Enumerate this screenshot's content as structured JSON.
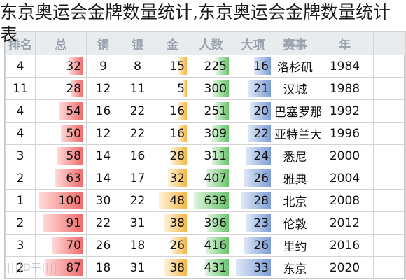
{
  "title": "东京奥运会金牌数量统计,东京奥运会金牌数量统计表",
  "headers": [
    "排名",
    "总",
    "铜",
    "银",
    "金",
    "人数",
    "大项",
    "赛事",
    "年"
  ],
  "rows": [
    {
      "rank": "4",
      "total": 32,
      "bronze": "9",
      "silver": "8",
      "gold": 15,
      "people": 225,
      "events": 16,
      "city": "洛杉矶",
      "year": "1984"
    },
    {
      "rank": "11",
      "total": 28,
      "bronze": "12",
      "silver": "11",
      "gold": 5,
      "people": 300,
      "events": 21,
      "city": "汉城",
      "year": "1988"
    },
    {
      "rank": "4",
      "total": 54,
      "bronze": "16",
      "silver": "22",
      "gold": 16,
      "people": 251,
      "events": 20,
      "city": "巴塞罗那",
      "year": "1992"
    },
    {
      "rank": "4",
      "total": 50,
      "bronze": "12",
      "silver": "22",
      "gold": 16,
      "people": 309,
      "events": 22,
      "city": "亚特兰大",
      "year": "1996"
    },
    {
      "rank": "3",
      "total": 58,
      "bronze": "14",
      "silver": "16",
      "gold": 28,
      "people": 311,
      "events": 24,
      "city": "悉尼",
      "year": "2000"
    },
    {
      "rank": "2",
      "total": 63,
      "bronze": "14",
      "silver": "17",
      "gold": 32,
      "people": 407,
      "events": 26,
      "city": "雅典",
      "year": "2004"
    },
    {
      "rank": "1",
      "total": 100,
      "bronze": "30",
      "silver": "22",
      "gold": 48,
      "people": 639,
      "events": 28,
      "city": "北京",
      "year": "2008"
    },
    {
      "rank": "2",
      "total": 91,
      "bronze": "22",
      "silver": "31",
      "gold": 38,
      "people": 396,
      "events": 23,
      "city": "伦敦",
      "year": "2012"
    },
    {
      "rank": "3",
      "total": 70,
      "bronze": "26",
      "silver": "18",
      "gold": 26,
      "people": 416,
      "events": 26,
      "city": "里约",
      "year": "2016"
    },
    {
      "rank": "2",
      "total": 87,
      "bronze": "18",
      "silver": "31",
      "gold": 38,
      "people": 431,
      "events": 33,
      "city": "东京",
      "year": "2020"
    }
  ],
  "bar_colors": {
    "total": "#f06a6a",
    "gold": "#f4b744",
    "people": "#68c46c",
    "events": "#7d9ed6"
  },
  "watermark": "||||D平||||"
}
